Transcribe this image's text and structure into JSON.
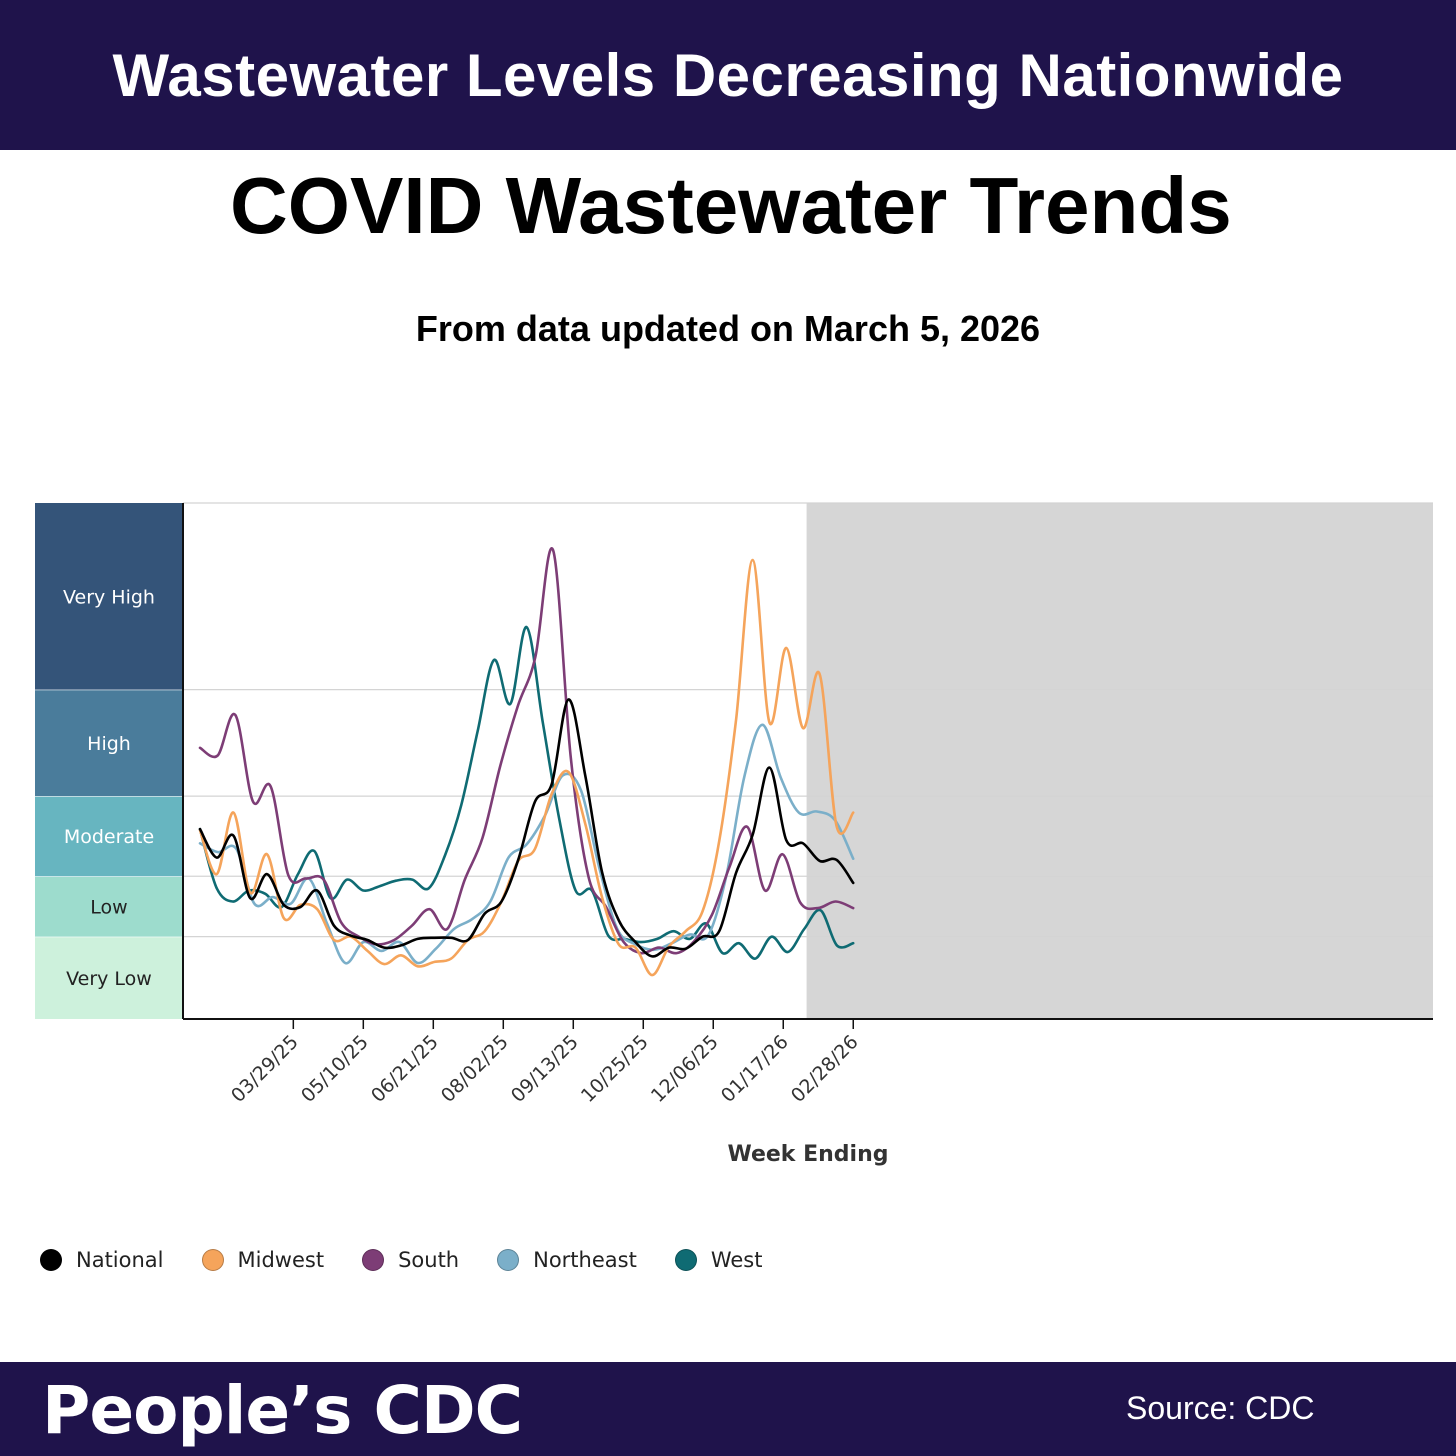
{
  "header": {
    "banner_title": "Wastewater Levels Decreasing Nationwide"
  },
  "chart_title": "COVID Wastewater Trends",
  "chart_subtitle": "From data updated on March 5, 2026",
  "footer": {
    "brand": "People’s CDC",
    "source": "Source: CDC"
  },
  "chart_data": {
    "type": "line",
    "title": "COVID Wastewater Trends",
    "subtitle": "From data updated on March 5, 2026",
    "xlabel": "Week Ending",
    "ylabel": "",
    "x_tick_labels": [
      "03/29/25",
      "05/10/25",
      "06/21/25",
      "08/02/25",
      "09/13/25",
      "10/25/25",
      "12/06/25",
      "01/17/26",
      "02/28/26"
    ],
    "x_first_week": "03/08/25",
    "ylim": [
      0,
      4.7
    ],
    "levels": [
      {
        "label": "Very Low",
        "from": 0,
        "to": 0.75,
        "color": "#cdf1dc",
        "text_color": "#222222"
      },
      {
        "label": "Low",
        "from": 0.75,
        "to": 1.3,
        "color": "#9ddccd",
        "text_color": "#222222"
      },
      {
        "label": "Moderate",
        "from": 1.3,
        "to": 2.03,
        "color": "#67b5c0",
        "text_color": "#ffffff"
      },
      {
        "label": "High",
        "from": 2.03,
        "to": 3.0,
        "color": "#4a7c9b",
        "text_color": "#ffffff"
      },
      {
        "label": "Very High",
        "from": 3.0,
        "to": 4.7,
        "color": "#345479",
        "text_color": "#ffffff"
      }
    ],
    "provisional_weeks": 2,
    "legend_position": "bottom-left",
    "grid": true,
    "series": [
      {
        "name": "National",
        "color": "#000000",
        "values": [
          1.73,
          1.47,
          1.67,
          1.1,
          1.32,
          1.04,
          1.02,
          1.17,
          0.85,
          0.76,
          0.72,
          0.65,
          0.67,
          0.73,
          0.74,
          0.74,
          0.72,
          0.96,
          1.07,
          1.45,
          1.98,
          2.14,
          2.91,
          2.22,
          1.34,
          0.9,
          0.7,
          0.57,
          0.65,
          0.64,
          0.75,
          0.8,
          1.33,
          1.68,
          2.29,
          1.63,
          1.6,
          1.44,
          1.45,
          1.24
        ]
      },
      {
        "name": "Midwest",
        "color": "#f5a45b",
        "values": [
          1.72,
          1.32,
          1.88,
          1.15,
          1.5,
          0.92,
          1.04,
          1.0,
          0.72,
          0.75,
          0.62,
          0.5,
          0.58,
          0.48,
          0.52,
          0.55,
          0.72,
          0.8,
          1.07,
          1.44,
          1.55,
          2.05,
          2.25,
          1.78,
          1.11,
          0.68,
          0.65,
          0.4,
          0.66,
          0.8,
          0.98,
          1.62,
          2.72,
          4.18,
          2.7,
          3.38,
          2.65,
          3.14,
          1.76,
          1.88
        ]
      },
      {
        "name": "South",
        "color": "#7d3d76",
        "values": [
          2.47,
          2.4,
          2.77,
          1.98,
          2.12,
          1.31,
          1.28,
          1.27,
          0.88,
          0.75,
          0.68,
          0.72,
          0.85,
          1.0,
          0.82,
          1.27,
          1.65,
          2.3,
          2.85,
          3.3,
          4.27,
          2.38,
          1.3,
          1.02,
          0.7,
          0.6,
          0.65,
          0.6,
          0.71,
          0.95,
          1.39,
          1.75,
          1.17,
          1.5,
          1.06,
          1.01,
          1.07,
          1.01
        ]
      },
      {
        "name": "Northeast",
        "color": "#7bafc9",
        "values": [
          1.6,
          1.52,
          1.55,
          1.05,
          1.11,
          1.05,
          1.28,
          0.87,
          0.51,
          0.7,
          0.62,
          0.7,
          0.51,
          0.64,
          0.82,
          0.91,
          1.07,
          1.47,
          1.59,
          1.85,
          2.22,
          2.08,
          1.38,
          0.82,
          0.68,
          0.63,
          0.69,
          0.77,
          0.76,
          1.3,
          2.21,
          2.68,
          2.2,
          1.88,
          1.89,
          1.81,
          1.46
        ]
      },
      {
        "name": "West",
        "color": "#0f6b73",
        "values": [
          1.73,
          1.2,
          1.07,
          1.17,
          1.14,
          1.02,
          1.32,
          1.53,
          1.1,
          1.27,
          1.17,
          1.21,
          1.26,
          1.27,
          1.19,
          1.49,
          1.95,
          2.62,
          3.27,
          2.87,
          3.57,
          2.69,
          1.82,
          1.17,
          1.17,
          0.76,
          0.73,
          0.7,
          0.73,
          0.8,
          0.73,
          0.87,
          0.6,
          0.69,
          0.55,
          0.75,
          0.61,
          0.82,
          0.99,
          0.67,
          0.69
        ]
      }
    ]
  }
}
